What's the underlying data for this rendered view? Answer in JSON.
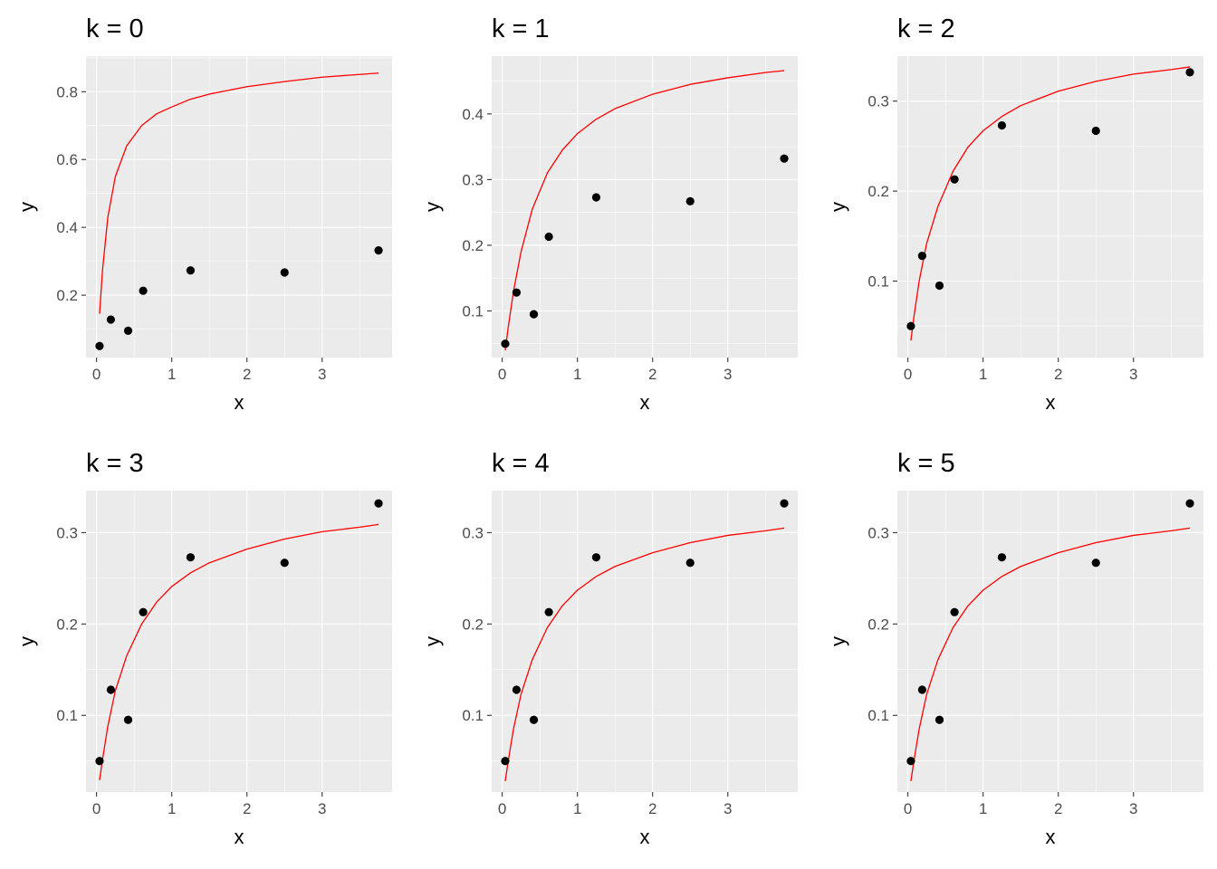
{
  "colors": {
    "panel_background": "#ebebeb",
    "grid_major": "#ffffff",
    "tick_mark": "#333333",
    "tick_label": "#4d4d4d",
    "point": "#000000",
    "curve": "#ff0000"
  },
  "chart_data": [
    {
      "type": "scatter",
      "title": "k = 0",
      "xlabel": "x",
      "ylabel": "y",
      "xlim": [
        -0.14,
        3.93
      ],
      "ylim": [
        0.016,
        0.905
      ],
      "xticks": [
        0,
        1,
        2,
        3
      ],
      "yticks": [
        0.2,
        0.4,
        0.6,
        0.8
      ],
      "ytick_labels": [
        "0.2",
        "0.4",
        "0.6",
        "0.8"
      ],
      "grid": true,
      "points": {
        "x": [
          0.04,
          0.19,
          0.42,
          0.62,
          1.25,
          2.5,
          3.75
        ],
        "y": [
          0.05,
          0.128,
          0.095,
          0.213,
          0.273,
          0.267,
          0.332
        ]
      },
      "curve": {
        "x": [
          0.04,
          0.08,
          0.15,
          0.25,
          0.4,
          0.6,
          0.8,
          1.0,
          1.25,
          1.5,
          2.0,
          2.5,
          3.0,
          3.5,
          3.75
        ],
        "y": [
          0.145,
          0.275,
          0.43,
          0.55,
          0.64,
          0.7,
          0.735,
          0.755,
          0.778,
          0.793,
          0.815,
          0.83,
          0.843,
          0.851,
          0.855
        ]
      }
    },
    {
      "type": "scatter",
      "title": "k = 1",
      "xlabel": "x",
      "ylabel": "y",
      "xlim": [
        -0.14,
        3.93
      ],
      "ylim": [
        0.029,
        0.488
      ],
      "xticks": [
        0,
        1,
        2,
        3
      ],
      "yticks": [
        0.1,
        0.2,
        0.3,
        0.4
      ],
      "ytick_labels": [
        "0.1",
        "0.2",
        "0.3",
        "0.4"
      ],
      "grid": true,
      "points": {
        "x": [
          0.04,
          0.19,
          0.42,
          0.62,
          1.25,
          2.5,
          3.75
        ],
        "y": [
          0.05,
          0.128,
          0.095,
          0.213,
          0.273,
          0.267,
          0.332
        ]
      },
      "curve": {
        "x": [
          0.04,
          0.08,
          0.15,
          0.25,
          0.4,
          0.6,
          0.8,
          1.0,
          1.25,
          1.5,
          2.0,
          2.5,
          3.0,
          3.5,
          3.75
        ],
        "y": [
          0.04,
          0.075,
          0.13,
          0.19,
          0.255,
          0.31,
          0.345,
          0.37,
          0.392,
          0.408,
          0.43,
          0.445,
          0.455,
          0.463,
          0.466
        ]
      }
    },
    {
      "type": "scatter",
      "title": "k = 2",
      "xlabel": "x",
      "ylabel": "y",
      "xlim": [
        -0.14,
        3.93
      ],
      "ylim": [
        0.015,
        0.35
      ],
      "xticks": [
        0,
        1,
        2,
        3
      ],
      "yticks": [
        0.1,
        0.2,
        0.3
      ],
      "ytick_labels": [
        "0.1",
        "0.2",
        "0.3"
      ],
      "grid": true,
      "points": {
        "x": [
          0.04,
          0.19,
          0.42,
          0.62,
          1.25,
          2.5,
          3.75
        ],
        "y": [
          0.05,
          0.128,
          0.095,
          0.213,
          0.273,
          0.267,
          0.332
        ]
      },
      "curve": {
        "x": [
          0.04,
          0.08,
          0.15,
          0.25,
          0.4,
          0.6,
          0.8,
          1.0,
          1.25,
          1.5,
          2.0,
          2.5,
          3.0,
          3.5,
          3.75
        ],
        "y": [
          0.034,
          0.06,
          0.1,
          0.142,
          0.183,
          0.222,
          0.249,
          0.267,
          0.283,
          0.295,
          0.311,
          0.322,
          0.33,
          0.335,
          0.338
        ]
      }
    },
    {
      "type": "scatter",
      "title": "k = 3",
      "xlabel": "x",
      "ylabel": "y",
      "xlim": [
        -0.14,
        3.93
      ],
      "ylim": [
        0.016,
        0.346
      ],
      "xticks": [
        0,
        1,
        2,
        3
      ],
      "yticks": [
        0.1,
        0.2,
        0.3
      ],
      "ytick_labels": [
        "0.1",
        "0.2",
        "0.3"
      ],
      "grid": true,
      "points": {
        "x": [
          0.04,
          0.19,
          0.42,
          0.62,
          1.25,
          2.5,
          3.75
        ],
        "y": [
          0.05,
          0.128,
          0.095,
          0.213,
          0.273,
          0.267,
          0.332
        ]
      },
      "curve": {
        "x": [
          0.04,
          0.08,
          0.15,
          0.25,
          0.4,
          0.6,
          0.8,
          1.0,
          1.25,
          1.5,
          2.0,
          2.5,
          3.0,
          3.5,
          3.75
        ],
        "y": [
          0.029,
          0.052,
          0.088,
          0.127,
          0.165,
          0.2,
          0.224,
          0.241,
          0.256,
          0.267,
          0.282,
          0.293,
          0.301,
          0.306,
          0.309
        ]
      }
    },
    {
      "type": "scatter",
      "title": "k = 4",
      "xlabel": "x",
      "ylabel": "y",
      "xlim": [
        -0.14,
        3.93
      ],
      "ylim": [
        0.016,
        0.346
      ],
      "xticks": [
        0,
        1,
        2,
        3
      ],
      "yticks": [
        0.1,
        0.2,
        0.3
      ],
      "ytick_labels": [
        "0.1",
        "0.2",
        "0.3"
      ],
      "grid": true,
      "points": {
        "x": [
          0.04,
          0.19,
          0.42,
          0.62,
          1.25,
          2.5,
          3.75
        ],
        "y": [
          0.05,
          0.128,
          0.095,
          0.213,
          0.273,
          0.267,
          0.332
        ]
      },
      "curve": {
        "x": [
          0.04,
          0.08,
          0.15,
          0.25,
          0.4,
          0.6,
          0.8,
          1.0,
          1.25,
          1.5,
          2.0,
          2.5,
          3.0,
          3.5,
          3.75
        ],
        "y": [
          0.028,
          0.05,
          0.085,
          0.123,
          0.161,
          0.196,
          0.22,
          0.237,
          0.252,
          0.263,
          0.278,
          0.289,
          0.297,
          0.302,
          0.305
        ]
      }
    },
    {
      "type": "scatter",
      "title": "k = 5",
      "xlabel": "x",
      "ylabel": "y",
      "xlim": [
        -0.14,
        3.93
      ],
      "ylim": [
        0.016,
        0.346
      ],
      "xticks": [
        0,
        1,
        2,
        3
      ],
      "yticks": [
        0.1,
        0.2,
        0.3
      ],
      "ytick_labels": [
        "0.1",
        "0.2",
        "0.3"
      ],
      "grid": true,
      "points": {
        "x": [
          0.04,
          0.19,
          0.42,
          0.62,
          1.25,
          2.5,
          3.75
        ],
        "y": [
          0.05,
          0.128,
          0.095,
          0.213,
          0.273,
          0.267,
          0.332
        ]
      },
      "curve": {
        "x": [
          0.04,
          0.08,
          0.15,
          0.25,
          0.4,
          0.6,
          0.8,
          1.0,
          1.25,
          1.5,
          2.0,
          2.5,
          3.0,
          3.5,
          3.75
        ],
        "y": [
          0.028,
          0.05,
          0.085,
          0.123,
          0.161,
          0.196,
          0.22,
          0.237,
          0.252,
          0.263,
          0.278,
          0.289,
          0.297,
          0.302,
          0.305
        ]
      }
    }
  ]
}
